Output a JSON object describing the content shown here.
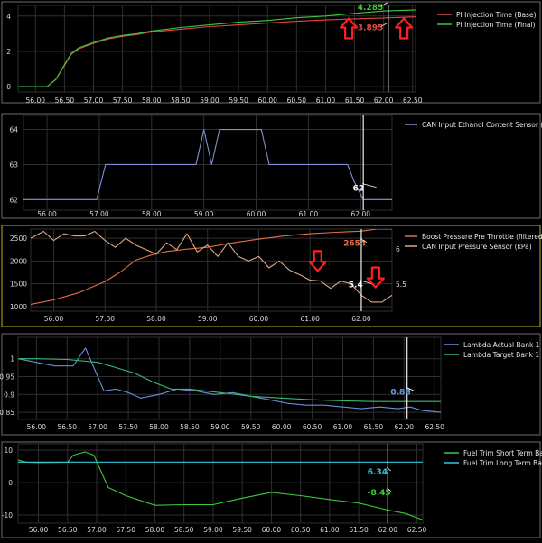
{
  "chart_data": [
    {
      "type": "line",
      "border_color": "#6b6b6b",
      "x_ticks": [
        "56.00",
        "56.50",
        "57.00",
        "57.50",
        "58.00",
        "58.50",
        "59.00",
        "59.50",
        "60.00",
        "60.50",
        "61.00",
        "61.50",
        "62.00",
        "62.50"
      ],
      "xlim": [
        55.7,
        62.55
      ],
      "ylim": [
        -0.3,
        4.6
      ],
      "y_ticks": [
        "0",
        "2",
        "4"
      ],
      "cursor_x": 62.08,
      "series": [
        {
          "name": "PI Injection Time (Base)",
          "color": "#e04848",
          "x": [
            55.7,
            56.2,
            56.35,
            56.5,
            56.62,
            56.75,
            57.0,
            57.25,
            57.5,
            57.75,
            58.0,
            58.5,
            59.0,
            59.5,
            60.0,
            60.5,
            61.0,
            61.5,
            62.0,
            62.55
          ],
          "y": [
            0,
            0,
            0.4,
            1.2,
            1.85,
            2.15,
            2.45,
            2.7,
            2.85,
            2.95,
            3.1,
            3.25,
            3.4,
            3.5,
            3.6,
            3.7,
            3.78,
            3.84,
            3.89,
            3.95
          ]
        },
        {
          "name": "PI Injection Time (Final)",
          "color": "#3ec83e",
          "x": [
            55.7,
            56.2,
            56.35,
            56.5,
            56.62,
            56.75,
            57.0,
            57.25,
            57.5,
            57.75,
            58.0,
            58.5,
            59.0,
            59.5,
            60.0,
            60.5,
            61.0,
            61.5,
            62.0,
            62.55
          ],
          "y": [
            0,
            0,
            0.42,
            1.25,
            1.9,
            2.2,
            2.5,
            2.75,
            2.9,
            3.0,
            3.15,
            3.35,
            3.5,
            3.65,
            3.75,
            3.9,
            4.0,
            4.15,
            4.285,
            4.35
          ]
        }
      ],
      "labels": [
        {
          "text": "4.285",
          "color": "#3ec83e",
          "x": 61.55,
          "y": 4.35
        },
        {
          "text": "3.895",
          "color": "#e04848",
          "x": 61.55,
          "y": 3.2
        }
      ],
      "arrows": [
        {
          "dir": "up",
          "x": 61.4,
          "y": 3.3
        },
        {
          "dir": "up",
          "x": 62.35,
          "y": 3.3
        }
      ]
    },
    {
      "type": "line",
      "border_color": "#6b6b6b",
      "x_ticks": [
        "56.00",
        "57.00",
        "58.00",
        "59.00",
        "60.00",
        "61.00",
        "62.00"
      ],
      "xlim": [
        55.55,
        62.6
      ],
      "ylim": [
        61.7,
        64.4
      ],
      "y_ticks": [
        "62",
        "63",
        "64"
      ],
      "cursor_x": 62.05,
      "series": [
        {
          "name": "CAN Input Ethanol Content Sensor (%)",
          "color": "#7f8fd8",
          "x": [
            55.55,
            56.7,
            56.95,
            57.12,
            58.0,
            58.85,
            59.0,
            59.15,
            59.3,
            59.45,
            59.6,
            59.8,
            60.1,
            60.25,
            61.0,
            61.75,
            61.88,
            62.05,
            62.6
          ],
          "y": [
            62,
            62,
            62,
            63,
            63,
            63,
            64,
            63,
            64,
            64,
            64,
            64,
            64,
            63,
            63,
            63,
            62.5,
            62,
            62
          ]
        }
      ],
      "labels": [
        {
          "text": "62",
          "color": "#ffffff",
          "x": 61.85,
          "y": 62.25
        }
      ]
    },
    {
      "type": "line",
      "border_color": "#b8b020",
      "x_ticks": [
        "56.00",
        "57.00",
        "58.00",
        "59.00",
        "60.00",
        "61.00",
        "62.00"
      ],
      "xlim": [
        55.55,
        62.6
      ],
      "ylim": [
        900,
        2700
      ],
      "y_ticks": [
        "1000",
        "1500",
        "2000",
        "2500"
      ],
      "y2_ticks": [
        "5.5",
        "6"
      ],
      "cursor_x": 62.0,
      "series": [
        {
          "name": "Boost Pressure Pre Throttle (filtered) (hPa)",
          "color": "#e0704a",
          "x": [
            55.55,
            56.0,
            56.5,
            57.0,
            57.3,
            57.6,
            57.9,
            58.2,
            58.6,
            59.0,
            59.5,
            60.0,
            60.5,
            61.0,
            61.5,
            62.0,
            62.3,
            62.6
          ],
          "y": [
            1050,
            1150,
            1310,
            1550,
            1760,
            2020,
            2130,
            2210,
            2260,
            2300,
            2400,
            2480,
            2550,
            2600,
            2630,
            2654,
            2700,
            2700
          ]
        },
        {
          "name": "CAN Input Pressure Sensor (kPa)",
          "color": "#e0a888",
          "x": [
            55.55,
            55.8,
            56.0,
            56.2,
            56.4,
            56.6,
            56.8,
            57.0,
            57.2,
            57.4,
            57.6,
            57.8,
            58.0,
            58.2,
            58.4,
            58.6,
            58.8,
            59.0,
            59.2,
            59.4,
            59.6,
            59.8,
            60.0,
            60.2,
            60.4,
            60.6,
            60.8,
            61.0,
            61.2,
            61.4,
            61.6,
            61.8,
            62.0,
            62.2,
            62.4,
            62.6
          ],
          "y": [
            2500,
            2650,
            2450,
            2600,
            2550,
            2550,
            2650,
            2450,
            2300,
            2500,
            2350,
            2250,
            2150,
            2400,
            2250,
            2600,
            2200,
            2350,
            2100,
            2400,
            2100,
            2000,
            2100,
            1850,
            2000,
            1800,
            1700,
            1580,
            1560,
            1400,
            1560,
            1500,
            1250,
            1100,
            1100,
            1250
          ]
        }
      ],
      "labels": [
        {
          "text": "2654",
          "color": "#e0704a",
          "x": 61.65,
          "y": 2330
        },
        {
          "text": "5.4",
          "color": "#ffffff",
          "x": 61.75,
          "y": 1420
        }
      ],
      "arrows": [
        {
          "dir": "down",
          "x": 61.15,
          "y": 2000
        },
        {
          "dir": "down",
          "x": 62.28,
          "y": 1640
        }
      ]
    },
    {
      "type": "line",
      "border_color": "#6b6b6b",
      "x_ticks": [
        "56.00",
        "56.50",
        "57.00",
        "57.50",
        "58.00",
        "58.50",
        "59.00",
        "59.50",
        "60.00",
        "60.50",
        "61.00",
        "61.50",
        "62.00",
        "62.50"
      ],
      "xlim": [
        55.7,
        62.6
      ],
      "ylim": [
        0.83,
        1.06
      ],
      "y_ticks": [
        "0.85",
        "0.9",
        "0.95",
        "1"
      ],
      "cursor_x": 62.05,
      "series": [
        {
          "name": "Lambda Actual Bank 1 (-)",
          "color": "#6a8fd8",
          "x": [
            55.7,
            56.0,
            56.3,
            56.6,
            56.8,
            56.95,
            57.1,
            57.3,
            57.5,
            57.7,
            58.0,
            58.3,
            58.6,
            58.9,
            59.2,
            59.5,
            59.8,
            60.1,
            60.4,
            60.7,
            61.0,
            61.3,
            61.6,
            61.9,
            62.1,
            62.3,
            62.6
          ],
          "y": [
            1.0,
            0.99,
            0.98,
            0.98,
            1.03,
            0.97,
            0.91,
            0.915,
            0.905,
            0.89,
            0.9,
            0.915,
            0.91,
            0.9,
            0.905,
            0.895,
            0.885,
            0.875,
            0.87,
            0.87,
            0.865,
            0.86,
            0.865,
            0.86,
            0.865,
            0.855,
            0.85
          ]
        },
        {
          "name": "Lambda Target Bank 1 (-)",
          "color": "#3ab878",
          "x": [
            55.7,
            56.0,
            56.5,
            57.0,
            57.3,
            57.6,
            57.9,
            58.2,
            58.5,
            59.0,
            59.5,
            60.0,
            60.5,
            61.0,
            61.5,
            62.0,
            62.6
          ],
          "y": [
            1.0,
            1.0,
            0.998,
            0.99,
            0.975,
            0.96,
            0.935,
            0.915,
            0.915,
            0.905,
            0.895,
            0.89,
            0.885,
            0.882,
            0.88,
            0.88,
            0.88
          ]
        }
      ],
      "labels": [
        {
          "text": "0.88",
          "color": "#35c8e0",
          "x": 61.78,
          "y": 0.9
        },
        {
          "text": "0.86",
          "color": "#6a8fd8",
          "x": 61.78,
          "y": 0.9
        }
      ]
    },
    {
      "type": "line",
      "border_color": "#6b6b6b",
      "x_ticks": [
        "56.00",
        "56.50",
        "57.00",
        "57.50",
        "58.00",
        "58.50",
        "59.00",
        "59.50",
        "60.00",
        "60.50",
        "61.00",
        "61.50",
        "62.00",
        "62.50"
      ],
      "xlim": [
        55.65,
        62.6
      ],
      "ylim": [
        -12.5,
        12
      ],
      "y_ticks": [
        "10",
        "0",
        "-10"
      ],
      "cursor_x": 62.0,
      "series": [
        {
          "name": "Fuel Trim Short Term Bank 1 (%)",
          "color": "#3ec83e",
          "x": [
            55.65,
            55.8,
            56.0,
            56.5,
            56.6,
            56.8,
            56.95,
            57.2,
            57.5,
            58.0,
            58.5,
            59.0,
            59.5,
            60.0,
            60.5,
            61.0,
            61.5,
            62.0,
            62.3,
            62.6
          ],
          "y": [
            7,
            6.3,
            6.2,
            6.3,
            8.5,
            9.5,
            8.5,
            -1.5,
            -4,
            -7,
            -6.8,
            -6.8,
            -4.8,
            -3,
            -4,
            -5.2,
            -6.3,
            -8.45,
            -9.5,
            -11.5
          ]
        },
        {
          "name": "Fuel Trim Long Term Bank 1 (%)",
          "color": "#35c8d8",
          "x": [
            55.65,
            62.6
          ],
          "y": [
            6.34,
            6.34
          ]
        }
      ],
      "labels": [
        {
          "text": "6.34",
          "color": "#35c8d8",
          "x": 61.65,
          "y": 2.5
        },
        {
          "text": "-8.45",
          "color": "#3ec83e",
          "x": 61.65,
          "y": -3.8
        }
      ]
    }
  ]
}
